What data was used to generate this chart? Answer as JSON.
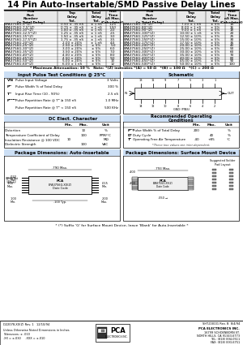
{
  "title": "14 Pin Auto-Insertable/SMD Passive Delay Lines",
  "bg_color": "#ffffff",
  "table1_rows": [
    [
      "EPA3756G-5*(Z)",
      "0.50 ± .35 nS",
      "± 1 nS",
      "1.25"
    ],
    [
      "EPA3756G-7.5*(Z)",
      "0.75 ± .35 nS",
      "± 1 nS",
      "1.50"
    ],
    [
      "EPA3756G-10*(Z)",
      "1.00 ± .35 nS",
      "± 1 nS",
      "2.0"
    ],
    [
      "EPA3756G-12.5*(Z)",
      "1.25 ± .35 nS",
      "± 1 nS",
      "2.5"
    ],
    [
      "EPA3756G-15*(Z)",
      "1.50 ± .35 nS",
      "± 1 nS",
      "3.0"
    ],
    [
      "EPA3756G-17.5*(Z)",
      "1.75 ± .35 nS",
      "± 1 nS",
      "3.5"
    ],
    [
      "EPA3756G-20*(Z)",
      "2.00 ± 20%",
      "± 1 nS",
      "4.0"
    ],
    [
      "EPA3756G-25*(Z)",
      "2.50 ± 20%",
      "± 5%",
      "5.0"
    ],
    [
      "EPA3756G-30*(Z)",
      "3.00 ± 20%",
      "± 5%",
      "6.0"
    ],
    [
      "EPA3756G-35*(Z)",
      "3.50 ± 20%",
      "± 5%",
      "7.0"
    ],
    [
      "EPA3756G-40*(Z)",
      "4.00 ± 20%",
      "± 5%",
      "8.0"
    ],
    [
      "EPA3756G-45*(Z)",
      "4.50 ± 20%",
      "± 5%",
      "9.0"
    ],
    [
      "EPA3756G-50*(Z)",
      "5.00 ± 20%",
      "± 5%",
      "10"
    ],
    [
      "EPA3756G-60*(Z)",
      "6.00 ± 1 nS",
      "± 5%",
      "12"
    ]
  ],
  "table2_rows": [
    [
      "EPA3756G-70*(Z)",
      "7.00 ± 1 nS",
      "± 5%",
      "14"
    ],
    [
      "EPA3756G-80*(Z)",
      "8.00 ± 1 nS",
      "± 5%",
      "16"
    ],
    [
      "EPA3756G-90*(Z)",
      "9.00 ± 1 nS",
      "± 5%",
      "18"
    ],
    [
      "EPA3756G-100*(Z)",
      "10.00 ± 1 nS",
      "± 5%",
      "20"
    ],
    [
      "EPA3756G-125*(Z)",
      "12.50 ± 10%",
      "± 5%",
      "25"
    ],
    [
      "EPA3756G-150*(Z)",
      "15.00 ± 10%",
      "± 5%",
      "30"
    ],
    [
      "EPA3756G-175*(Z)",
      "17.50 ± 10%",
      "± 5%",
      "35"
    ],
    [
      "EPA3756G-200*(Z)",
      "20.00 ± 10%",
      "± 5%",
      "40"
    ],
    [
      "EPA3756G-250*(Z)",
      "25.00 ± 10%",
      "± 5%",
      "50"
    ],
    [
      "EPA3756G-300*(Z)",
      "30.00 ± 10%",
      "± 5%",
      "60"
    ],
    [
      "EPA3756G-350*(Z)",
      "35.00 ± 10%",
      "± 5%",
      "70"
    ],
    [
      "EPA3756G-400*(Z)",
      "40.00 ± 10%",
      "± 5%",
      "80"
    ],
    [
      "EPA3756G-450*(Z)",
      "45.00 ± 10%",
      "± 5%",
      "90"
    ],
    [
      "EPA3756G-500*(Z)",
      "50.00 ± 10%",
      "± 5%",
      "100"
    ]
  ],
  "footnote": "  * Maximum Attenuation: 10 %   Note: *(Z) indicates *(A) = 50 Ω   *(B) = 100 Ω   *(C) = 200 Ω  ",
  "input_pulse_title": "Input Pulse Test Conditions @ 25°C",
  "dc_title": "DC Elect. Character",
  "schematic_title": "Schematic",
  "recommended_title": "Recommended Operating\nConditions",
  "pkg_auto_title": "Package Dimensions: Auto-Insertable",
  "pkg_smd_title": "Package Dimensions: Surface Mount Device",
  "footer_note": " * (*) Suffix 'G' for Surface Mount Device, leave 'Blank' for Auto-Insertable *",
  "company_note1": "Unless Otherwise Noted Dimensions in Inches",
  "company_note2": "Tolerances: ± .010",
  "company_note3": ".XX = ±.030     .XXX = ±.010",
  "company": "PCA ELECTRONICS INC.",
  "address1": "16799 SCHOENBORN ST.",
  "address2": "NORTH HILLS, CA 91343-6773",
  "address3": "TEL: (818) 894-0511",
  "address4": "FAX: (818) 893-6751",
  "doc_number1": "D22078-XX(Z) Rev. 1   12/10/94",
  "doc_number2": "SHT-D3001 Rev. B  8/4/94"
}
